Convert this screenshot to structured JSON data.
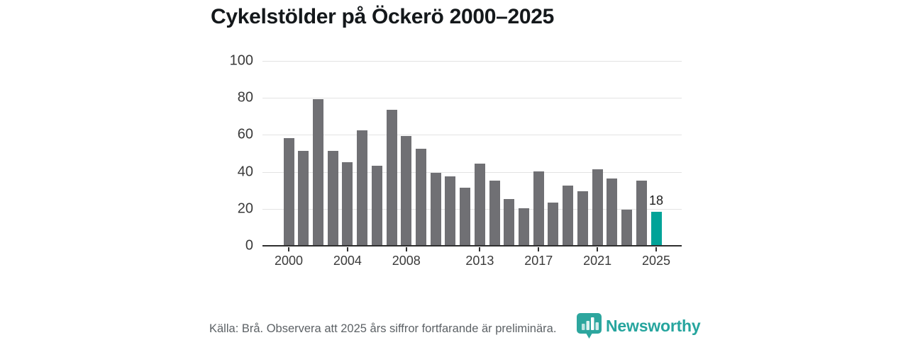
{
  "title": "Cykelstölder på Öckerö 2000–2025",
  "footer": {
    "source_note": "Källa: Brå. Observera att 2025 års siffror fortfarande är preliminära.",
    "brand": "Newsworthy"
  },
  "colors": {
    "bar": "#707074",
    "highlight": "#00a398",
    "logo_teal": "#26a59e",
    "grid": "#e3e3e3",
    "axis": "#2f2f2f"
  },
  "chart_data": {
    "type": "bar",
    "title": "Cykelstölder på Öckerö 2000–2025",
    "categories": [
      2000,
      2001,
      2002,
      2003,
      2004,
      2005,
      2006,
      2007,
      2008,
      2009,
      2010,
      2011,
      2012,
      2013,
      2014,
      2015,
      2016,
      2017,
      2018,
      2019,
      2020,
      2021,
      2022,
      2023,
      2024,
      2025
    ],
    "values": [
      58,
      51,
      79,
      51,
      45,
      62,
      43,
      73,
      59,
      52,
      39,
      37,
      31,
      44,
      35,
      25,
      20,
      40,
      23,
      32,
      29,
      41,
      36,
      19,
      35,
      18
    ],
    "highlight_year": 2025,
    "highlight_label": "18",
    "x_tick_labels": [
      "2000",
      "2004",
      "2008",
      "2013",
      "2017",
      "2021",
      "2025"
    ],
    "y_ticks": [
      0,
      20,
      40,
      60,
      80,
      100
    ],
    "ylim": [
      0,
      100
    ],
    "xlabel": "",
    "ylabel": "",
    "grid": true,
    "legend": false
  }
}
